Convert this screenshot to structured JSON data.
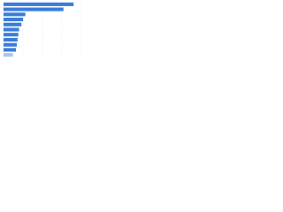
{
  "chart_data": {
    "type": "bar",
    "orientation": "horizontal",
    "categories": [
      null,
      null,
      null,
      null,
      null,
      null,
      null,
      null,
      null,
      null,
      null
    ],
    "series": [
      {
        "color": "#3b7dd8",
        "colors": [
          "#3b7dd8",
          "#3b7dd8",
          "#3b7dd8",
          "#3b7dd8",
          "#3b7dd8",
          "#3b7dd8",
          "#3b7dd8",
          "#3b7dd8",
          "#3b7dd8",
          "#3b7dd8",
          "#a9c6ee"
        ],
        "values": [
          90,
          77,
          28,
          25,
          23,
          20,
          19,
          18,
          17,
          16,
          12
        ]
      }
    ],
    "xlim": [
      0,
      100
    ],
    "xticks": [
      0,
      25,
      50,
      75,
      100
    ],
    "grid": true
  }
}
